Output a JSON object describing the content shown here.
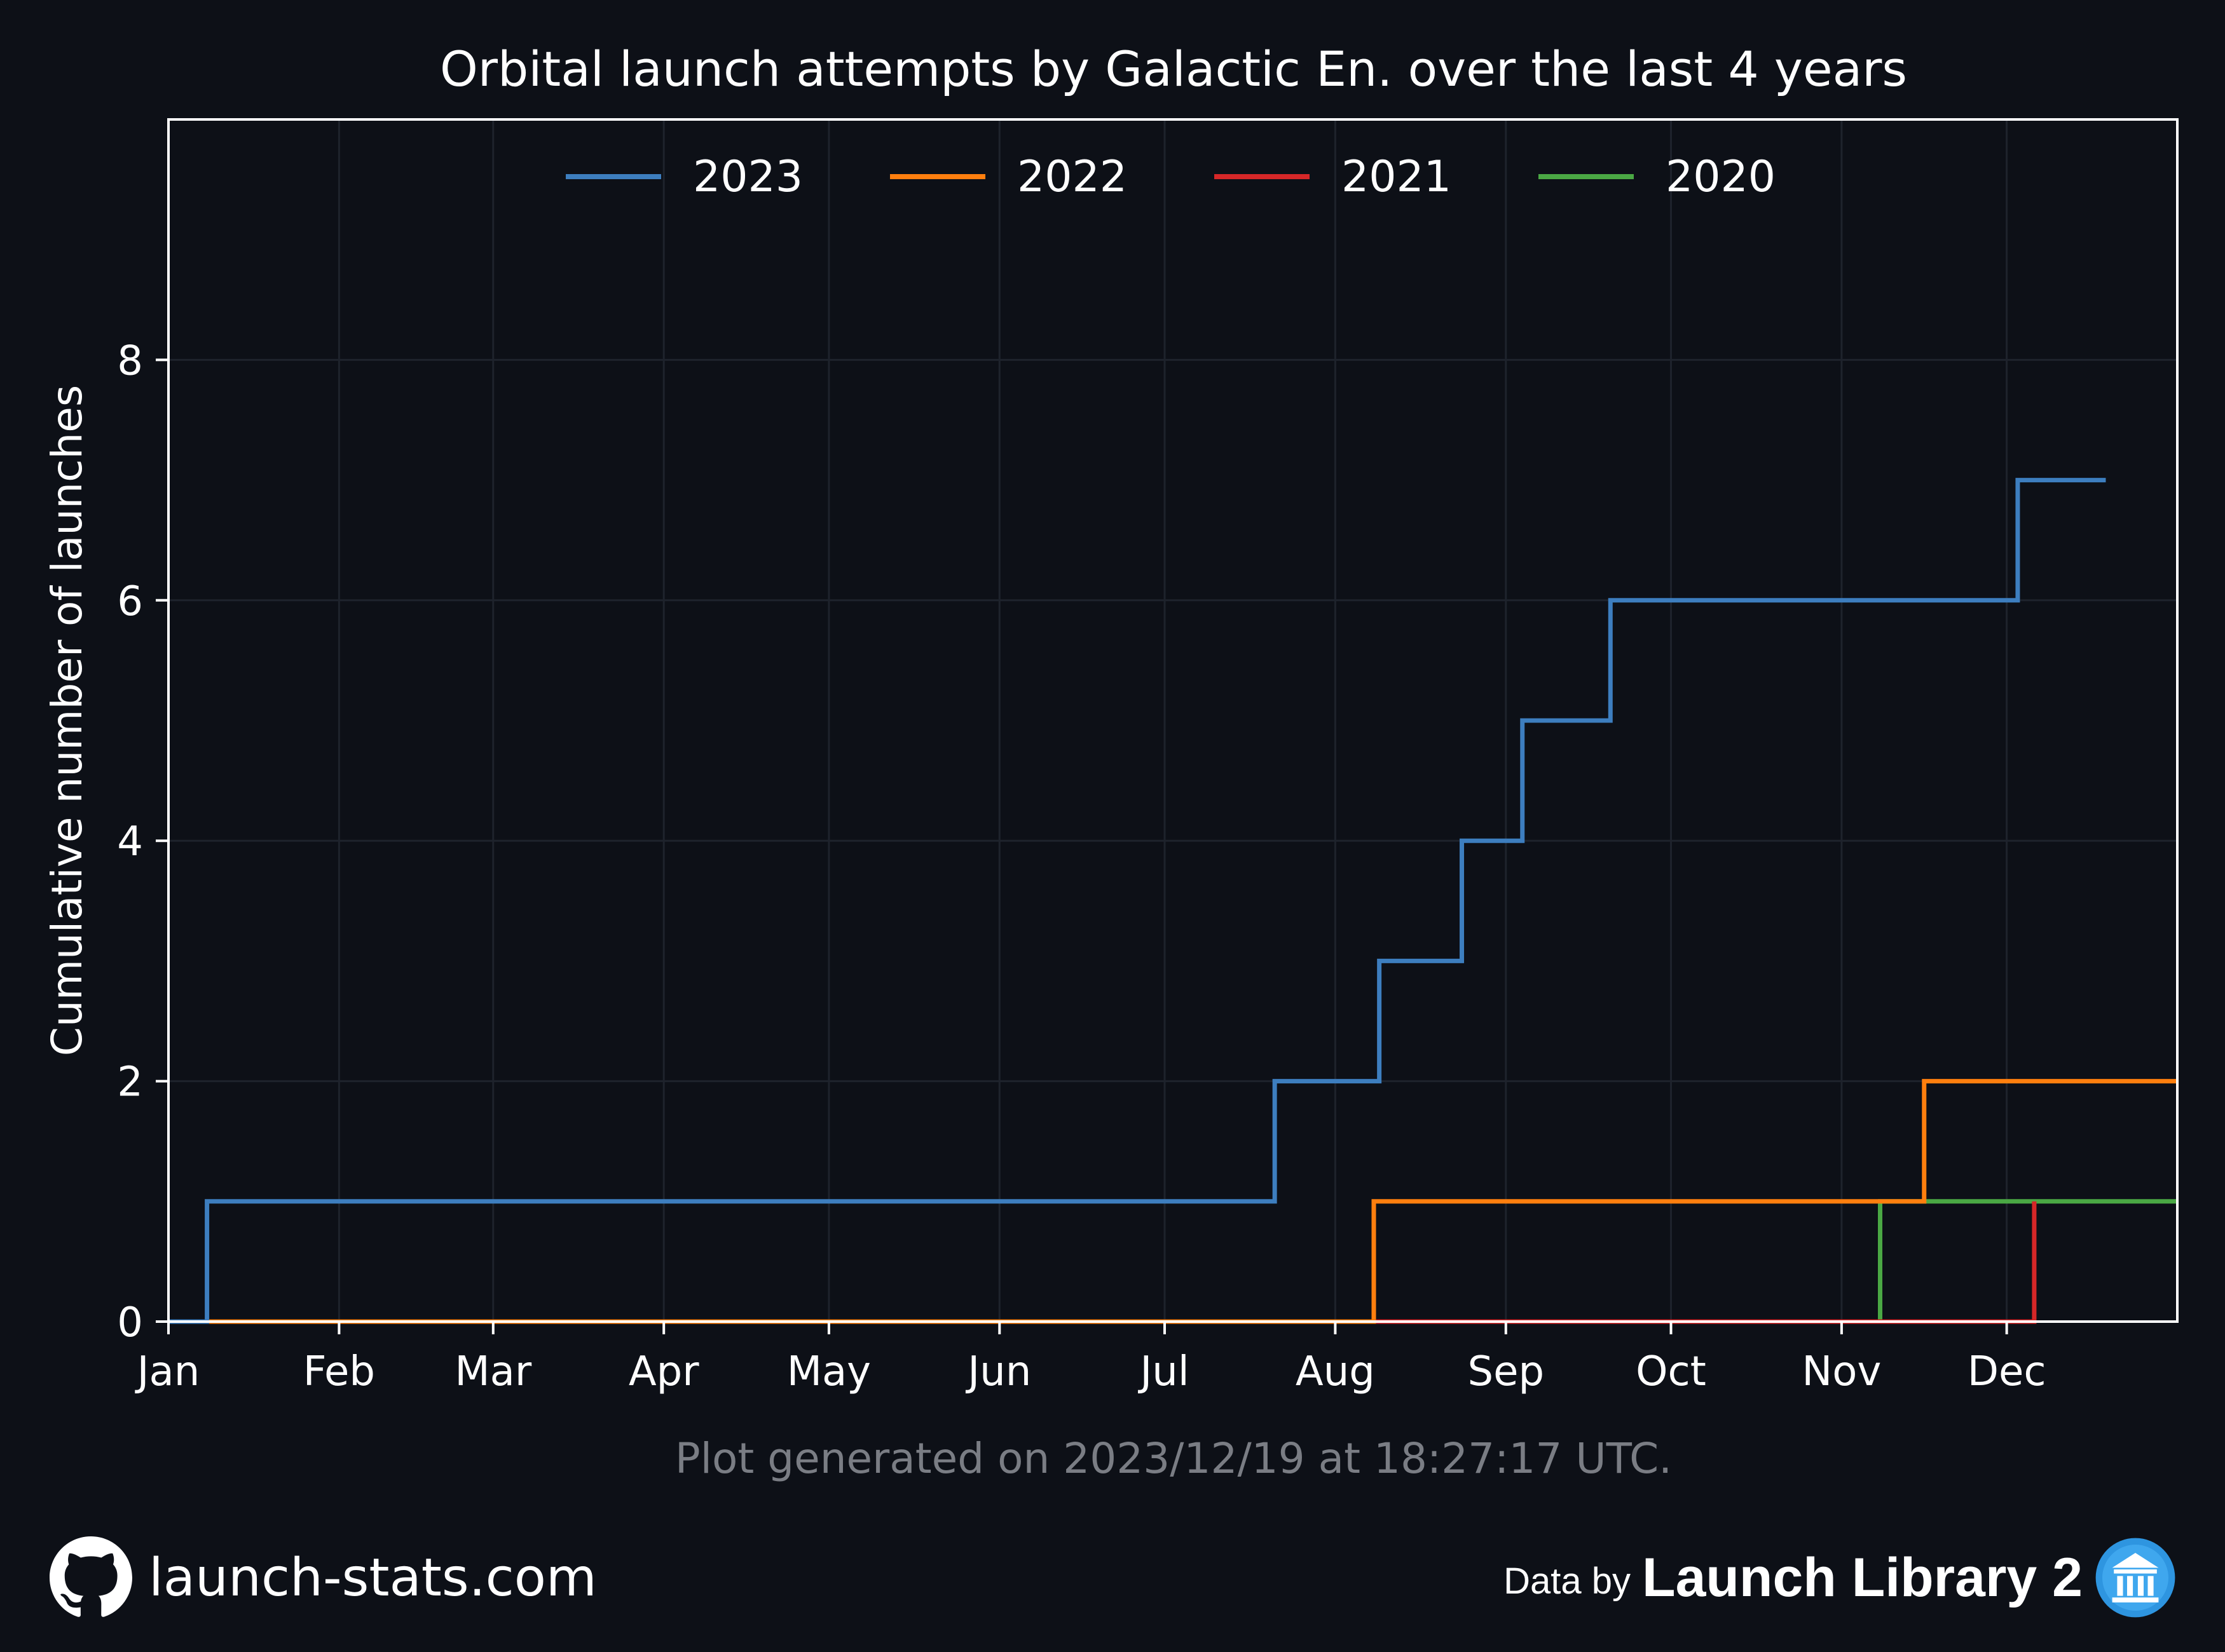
{
  "chart_data": {
    "type": "line",
    "step": true,
    "title": "Orbital launch attempts by Galactic En. over the last 4 years",
    "xlabel": "",
    "ylabel": "Cumulative number of launches",
    "x_ticks": [
      "Jan",
      "Feb",
      "Mar",
      "Apr",
      "May",
      "Jun",
      "Jul",
      "Aug",
      "Sep",
      "Oct",
      "Nov",
      "Dec"
    ],
    "x_tick_days": [
      0,
      31,
      59,
      90,
      120,
      151,
      181,
      212,
      243,
      273,
      304,
      334
    ],
    "y_ticks": [
      0,
      2,
      4,
      6,
      8
    ],
    "xlim": [
      0,
      365
    ],
    "ylim": [
      0,
      10
    ],
    "grid": true,
    "legend_position": "top-center",
    "series": [
      {
        "name": "2023",
        "color": "#3d7ebf",
        "x": [
          0,
          7,
          201,
          220,
          235,
          246,
          262,
          336,
          352
        ],
        "y": [
          0,
          1,
          2,
          3,
          4,
          5,
          6,
          7,
          7
        ]
      },
      {
        "name": "2022",
        "color": "#ff7f0e",
        "x": [
          0,
          219,
          319,
          365
        ],
        "y": [
          0,
          1,
          2,
          2
        ]
      },
      {
        "name": "2021",
        "color": "#d62728",
        "x": [
          0,
          339,
          339
        ],
        "y": [
          0,
          0,
          1
        ]
      },
      {
        "name": "2020",
        "color": "#4aa844",
        "x": [
          0,
          311,
          365
        ],
        "y": [
          0,
          1,
          1
        ]
      }
    ],
    "annotation": "Plot generated on 2023/12/19 at 18:27:17 UTC."
  },
  "footer": {
    "site": "launch-stats.com",
    "site_icon": "github-icon",
    "credit_prefix": "Data by",
    "credit_brand": "Launch Library 2",
    "credit_icon": "launch-library-icon"
  },
  "colors": {
    "background": "#0d1017",
    "text": "#ffffff",
    "muted_text": "#7a7d84",
    "grid": "#1e232c",
    "brand_icon": "#2e95e0"
  }
}
